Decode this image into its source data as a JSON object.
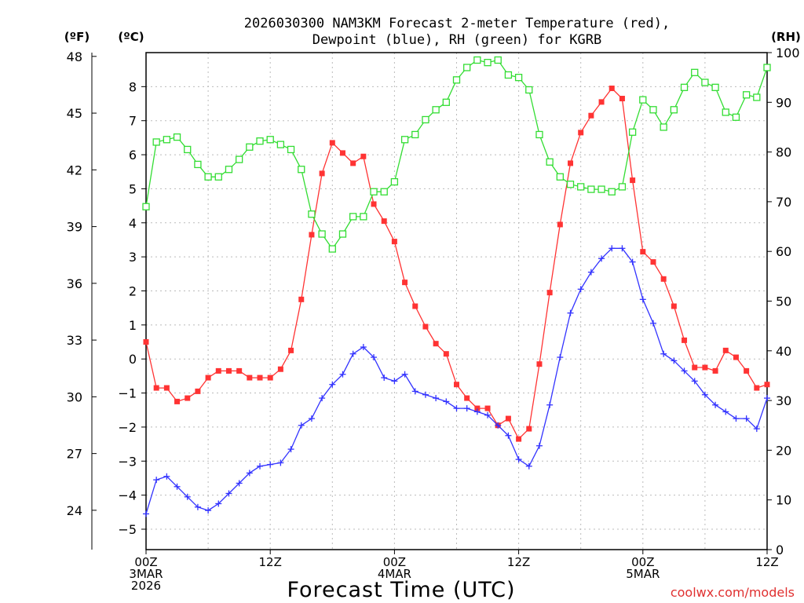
{
  "chart_data": {
    "type": "line",
    "title_line1": "2026030300 NAM3KM Forecast 2-meter Temperature (red),",
    "title_line2": "Dewpoint (blue), RH (green) for KGRB",
    "xlabel": "Forecast Time (UTC)",
    "credit": "coolwx.com/models",
    "unit_labels": {
      "fahrenheit": "(ºF)",
      "celsius": "(ºC)",
      "rh": "(RH)"
    },
    "colors": {
      "temperature": "#ff3333",
      "dewpoint": "#3333ff",
      "rh": "#33dd33",
      "grid": "#bbbbbb"
    },
    "x_range_hours": [
      0,
      60
    ],
    "celsius_range": [
      -5.6,
      9.0
    ],
    "rh_range": [
      0,
      100
    ],
    "x_ticks": [
      {
        "hour": 0,
        "lines": [
          "00Z",
          "3MAR",
          "2026"
        ]
      },
      {
        "hour": 12,
        "lines": [
          "12Z"
        ]
      },
      {
        "hour": 24,
        "lines": [
          "00Z",
          "4MAR"
        ]
      },
      {
        "hour": 36,
        "lines": [
          "12Z"
        ]
      },
      {
        "hour": 48,
        "lines": [
          "00Z",
          "5MAR"
        ]
      },
      {
        "hour": 60,
        "lines": [
          "12Z"
        ]
      }
    ],
    "celsius_ticks": [
      8,
      7,
      6,
      5,
      4,
      3,
      2,
      1,
      0,
      -1,
      -2,
      -3,
      -4,
      -5
    ],
    "fahrenheit_ticks": [
      48,
      45,
      42,
      39,
      36,
      33,
      30,
      27,
      24
    ],
    "rh_ticks": [
      100,
      90,
      80,
      70,
      60,
      50,
      40,
      30,
      20,
      10,
      0
    ],
    "series": [
      {
        "name": "Temperature",
        "units": "C",
        "marker": "filled-square",
        "x": [
          0,
          1,
          2,
          3,
          4,
          5,
          6,
          7,
          8,
          9,
          10,
          11,
          12,
          13,
          14,
          15,
          16,
          17,
          18,
          19,
          20,
          21,
          22,
          23,
          24,
          25,
          26,
          27,
          28,
          29,
          30,
          31,
          32,
          33,
          34,
          35,
          36,
          37,
          38,
          39,
          40,
          41,
          42,
          43,
          44,
          45,
          46,
          47,
          48,
          49,
          50,
          51,
          52,
          53,
          54,
          55,
          56,
          57,
          58,
          59,
          60
        ],
        "values": [
          0.5,
          -0.85,
          -0.85,
          -1.25,
          -1.15,
          -0.95,
          -0.55,
          -0.35,
          -0.35,
          -0.35,
          -0.55,
          -0.55,
          -0.55,
          -0.3,
          0.25,
          1.75,
          3.65,
          5.45,
          6.35,
          6.05,
          5.75,
          5.95,
          4.55,
          4.05,
          3.45,
          2.25,
          1.55,
          0.95,
          0.45,
          0.15,
          -0.75,
          -1.15,
          -1.45,
          -1.45,
          -1.95,
          -1.75,
          -2.35,
          -2.05,
          -0.15,
          1.95,
          3.95,
          5.75,
          6.65,
          7.15,
          7.55,
          7.95,
          7.65,
          5.25,
          3.15,
          2.85,
          2.35,
          1.55,
          0.55,
          -0.25,
          -0.25,
          -0.35,
          0.25,
          0.05,
          -0.35,
          -0.85,
          -0.75
        ]
      },
      {
        "name": "Dewpoint",
        "units": "C",
        "marker": "plus",
        "x": [
          0,
          1,
          2,
          3,
          4,
          5,
          6,
          7,
          8,
          9,
          10,
          11,
          12,
          13,
          14,
          15,
          16,
          17,
          18,
          19,
          20,
          21,
          22,
          23,
          24,
          25,
          26,
          27,
          28,
          29,
          30,
          31,
          32,
          33,
          34,
          35,
          36,
          37,
          38,
          39,
          40,
          41,
          42,
          43,
          44,
          45,
          46,
          47,
          48,
          49,
          50,
          51,
          52,
          53,
          54,
          55,
          56,
          57,
          58,
          59,
          60
        ],
        "values": [
          -4.55,
          -3.55,
          -3.45,
          -3.75,
          -4.05,
          -4.35,
          -4.45,
          -4.25,
          -3.95,
          -3.65,
          -3.35,
          -3.15,
          -3.1,
          -3.05,
          -2.65,
          -1.95,
          -1.75,
          -1.15,
          -0.75,
          -0.45,
          0.15,
          0.35,
          0.05,
          -0.55,
          -0.65,
          -0.45,
          -0.95,
          -1.05,
          -1.15,
          -1.25,
          -1.45,
          -1.45,
          -1.55,
          -1.65,
          -1.95,
          -2.25,
          -2.95,
          -3.15,
          -2.55,
          -1.35,
          0.05,
          1.35,
          2.05,
          2.55,
          2.95,
          3.25,
          3.25,
          2.85,
          1.75,
          1.05,
          0.15,
          -0.05,
          -0.35,
          -0.65,
          -1.05,
          -1.35,
          -1.55,
          -1.75,
          -1.75,
          -2.05,
          -1.15
        ]
      },
      {
        "name": "RH",
        "units": "%",
        "marker": "open-square",
        "x": [
          0,
          1,
          2,
          3,
          4,
          5,
          6,
          7,
          8,
          9,
          10,
          11,
          12,
          13,
          14,
          15,
          16,
          17,
          18,
          19,
          20,
          21,
          22,
          23,
          24,
          25,
          26,
          27,
          28,
          29,
          30,
          31,
          32,
          33,
          34,
          35,
          36,
          37,
          38,
          39,
          40,
          41,
          42,
          43,
          44,
          45,
          46,
          47,
          48,
          49,
          50,
          51,
          52,
          53,
          54,
          55,
          56,
          57,
          58,
          59,
          60
        ],
        "values": [
          69,
          82,
          82.5,
          83,
          80.5,
          77.5,
          75,
          75,
          76.5,
          78.5,
          81,
          82.2,
          82.5,
          81.5,
          80.5,
          76.5,
          67.5,
          63.5,
          60.5,
          63.5,
          67,
          67,
          72,
          72,
          74,
          82.5,
          83.5,
          86.5,
          88.5,
          90,
          94.5,
          97,
          98.5,
          98,
          98.5,
          95.5,
          95,
          92.5,
          83.5,
          78,
          75,
          73.5,
          73,
          72.5,
          72.5,
          72,
          73,
          84,
          90.5,
          88.5,
          85,
          88.5,
          93,
          96,
          94,
          93,
          88,
          87,
          91.5,
          91,
          97
        ]
      }
    ]
  }
}
